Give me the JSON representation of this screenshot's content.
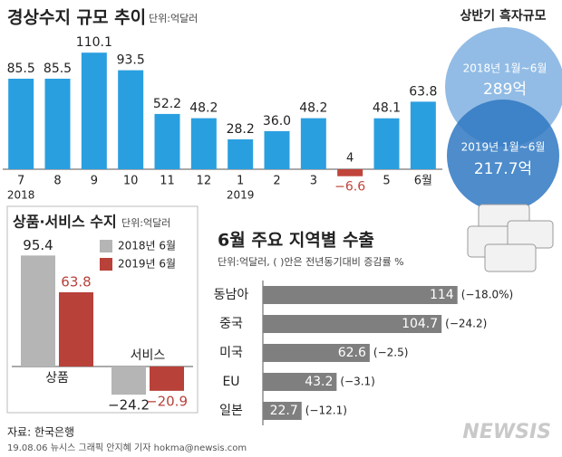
{
  "chart_data": [
    {
      "type": "bar",
      "title": "경상수지 규모 추이",
      "unit": "단위:억달러",
      "categories": [
        "7",
        "8",
        "9",
        "10",
        "11",
        "12",
        "1",
        "2",
        "3",
        "4",
        "5",
        "6월"
      ],
      "year_labels": [
        "2018",
        "2019"
      ],
      "values": [
        85.5,
        85.5,
        110.1,
        93.5,
        52.2,
        48.2,
        28.2,
        36.0,
        48.2,
        -6.6,
        48.1,
        63.8
      ],
      "value_labels": [
        "85.5",
        "85.5",
        "110.1",
        "93.5",
        "52.2",
        "48.2",
        "28.2",
        "36.0",
        "48.2",
        "−6.6",
        "48.1",
        "63.8"
      ],
      "color": "#2a9fe0",
      "negative_color": "#c0443c",
      "ylim": [
        -20,
        120
      ]
    },
    {
      "type": "bar",
      "title": "상품·서비스 수지",
      "unit": "단위:억달러",
      "categories": [
        "상품",
        "서비스"
      ],
      "series": [
        {
          "name": "2018년 6월",
          "color": "#b5b5b5",
          "values": [
            95.4,
            -24.2
          ],
          "value_labels": [
            "95.4",
            "−24.2"
          ]
        },
        {
          "name": "2019년 6월",
          "color": "#b8413a",
          "values": [
            63.8,
            -20.9
          ],
          "value_labels": [
            "63.8",
            "−20.9"
          ]
        }
      ],
      "ylim": [
        -35,
        105
      ]
    },
    {
      "type": "hbar",
      "title": "6월 주요 지역별 수출",
      "unit": "단위:억달러, ( )안은 전년동기대비 증감률 %",
      "categories": [
        "동남아",
        "중국",
        "미국",
        "EU",
        "일본"
      ],
      "values": [
        114,
        104.7,
        62.6,
        43.2,
        22.7
      ],
      "annotations": [
        "(−18.0%)",
        "(−24.2)",
        "(−2.5)",
        "(−3.1)",
        "(−12.1)"
      ],
      "color": "#7f7f7f",
      "xlim": [
        0,
        120
      ]
    }
  ],
  "half_year": {
    "title": "상반기 흑자규모",
    "items": [
      {
        "period": "2018년 1월~6월",
        "amount": "289억"
      },
      {
        "period": "2019년 1월~6월",
        "amount": "217.7억"
      }
    ]
  },
  "source": "자료: 한국은행",
  "credit": "19.08.06 뉴시스 그래픽 안지혜 기자 hokma@newsis.com",
  "logo": "NEWSIS"
}
